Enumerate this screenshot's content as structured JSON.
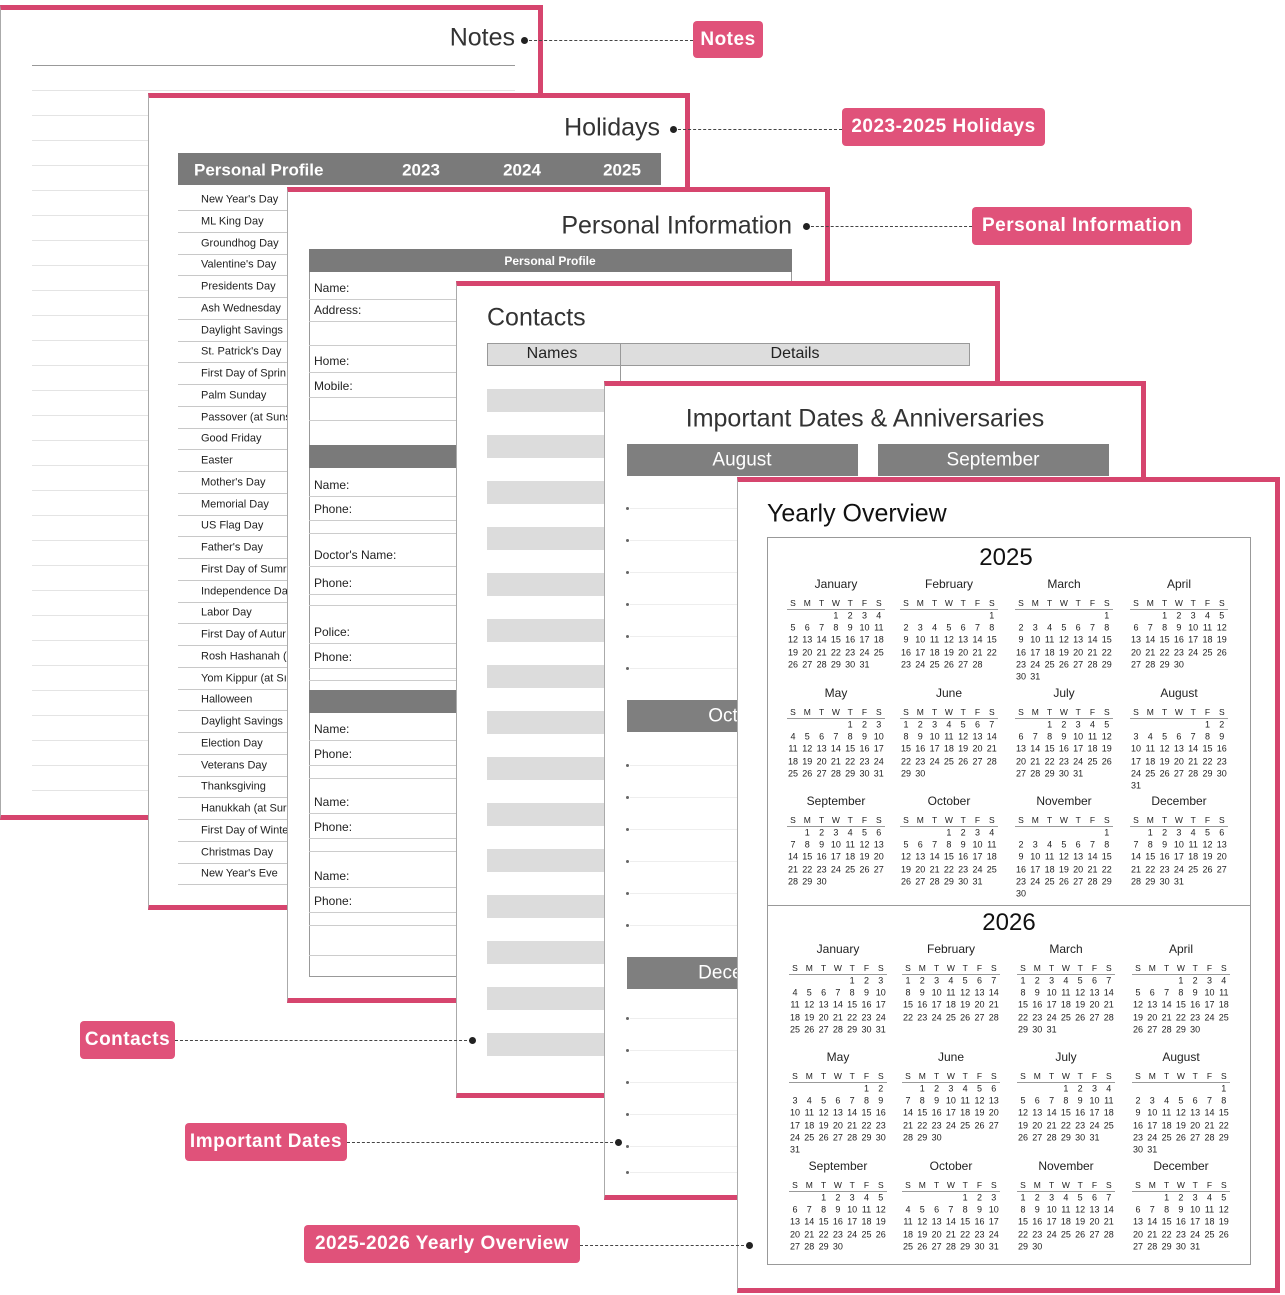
{
  "callouts": [
    "Notes",
    "2023-2025 Holidays",
    "Personal Information",
    "Contacts",
    "Important Dates",
    "2025-2026 Yearly Overview"
  ],
  "notes": {
    "title": "Notes"
  },
  "holidays": {
    "title": "Holidays",
    "header": [
      "Personal Profile",
      "2023",
      "2024",
      "2025"
    ],
    "items": [
      "New Year's Day",
      "ML King Day",
      "Groundhog Day",
      "Valentine's Day",
      "Presidents Day",
      "Ash Wednesday",
      "Daylight Savings",
      "St. Patrick's Day",
      "First Day of Sprin",
      "Palm Sunday",
      "Passover (at Suns",
      "Good Friday",
      "Easter",
      "Mother's Day",
      "Memorial Day",
      "US Flag Day",
      "Father's Day",
      "First Day of Sumr",
      "Independence Da",
      "Labor Day",
      "First Day of Autur",
      "Rosh Hashanah (",
      "Yom Kippur (at Sı",
      "Halloween",
      "Daylight Savings",
      "Election Day",
      "Veterans Day",
      "Thanksgiving",
      "Hanukkah (at Sur",
      "First Day of Winte",
      "Christmas Day",
      "New Year's Eve"
    ]
  },
  "personal_information": {
    "title": "Personal Information",
    "section_title": "Personal Profile",
    "fields": [
      "Name:",
      "Address:",
      "Home:",
      "Mobile:",
      "Name:",
      "Phone:",
      "Doctor's Name:",
      "Phone:",
      "Police:",
      "Phone:",
      "Name:",
      "Phone:",
      "Name:",
      "Phone:",
      "Name:",
      "Phone:"
    ]
  },
  "contacts": {
    "title": "Contacts",
    "columns": [
      "Names",
      "Details"
    ]
  },
  "important_dates": {
    "title": "Important Dates & Anniversaries",
    "months": [
      "August",
      "September",
      "October",
      "December"
    ]
  },
  "yearly_overview": {
    "title": "Yearly Overview",
    "weekdays": [
      "S",
      "M",
      "T",
      "W",
      "T",
      "F",
      "S"
    ],
    "years": [
      {
        "year": "2025",
        "months": [
          {
            "name": "January",
            "days": [
              null,
              null,
              null,
              1,
              2,
              3,
              4,
              5,
              6,
              7,
              8,
              9,
              10,
              11,
              12,
              13,
              14,
              15,
              16,
              17,
              18,
              19,
              20,
              21,
              22,
              23,
              24,
              25,
              26,
              27,
              28,
              29,
              30,
              31
            ]
          },
          {
            "name": "February",
            "days": [
              null,
              null,
              null,
              null,
              null,
              null,
              1,
              2,
              3,
              4,
              5,
              6,
              7,
              8,
              9,
              10,
              11,
              12,
              13,
              14,
              15,
              16,
              17,
              18,
              19,
              20,
              21,
              22,
              23,
              24,
              25,
              26,
              27,
              28
            ]
          },
          {
            "name": "March",
            "days": [
              null,
              null,
              null,
              null,
              null,
              null,
              1,
              2,
              3,
              4,
              5,
              6,
              7,
              8,
              9,
              10,
              11,
              12,
              13,
              14,
              15,
              16,
              17,
              18,
              19,
              20,
              21,
              22,
              23,
              24,
              25,
              26,
              27,
              28,
              29,
              30,
              31
            ]
          },
          {
            "name": "April",
            "days": [
              null,
              null,
              1,
              2,
              3,
              4,
              5,
              6,
              7,
              8,
              9,
              10,
              11,
              12,
              13,
              14,
              15,
              16,
              17,
              18,
              19,
              20,
              21,
              22,
              23,
              24,
              25,
              26,
              27,
              28,
              29,
              30
            ]
          },
          {
            "name": "May",
            "days": [
              null,
              null,
              null,
              null,
              1,
              2,
              3,
              4,
              5,
              6,
              7,
              8,
              9,
              10,
              11,
              12,
              13,
              14,
              15,
              16,
              17,
              18,
              19,
              20,
              21,
              22,
              23,
              24,
              25,
              26,
              27,
              28,
              29,
              30,
              31
            ]
          },
          {
            "name": "June",
            "days": [
              1,
              2,
              3,
              4,
              5,
              6,
              7,
              8,
              9,
              10,
              11,
              12,
              13,
              14,
              15,
              16,
              17,
              18,
              19,
              20,
              21,
              22,
              23,
              24,
              25,
              26,
              27,
              28,
              29,
              30
            ]
          },
          {
            "name": "July",
            "days": [
              null,
              null,
              1,
              2,
              3,
              4,
              5,
              6,
              7,
              8,
              9,
              10,
              11,
              12,
              13,
              14,
              15,
              16,
              17,
              18,
              19,
              20,
              21,
              22,
              23,
              24,
              25,
              26,
              27,
              28,
              29,
              30,
              31
            ]
          },
          {
            "name": "August",
            "days": [
              null,
              null,
              null,
              null,
              null,
              1,
              2,
              3,
              4,
              5,
              6,
              7,
              8,
              9,
              10,
              11,
              12,
              13,
              14,
              15,
              16,
              17,
              18,
              19,
              20,
              21,
              22,
              23,
              24,
              25,
              26,
              27,
              28,
              29,
              30,
              31
            ]
          },
          {
            "name": "September",
            "days": [
              null,
              1,
              2,
              3,
              4,
              5,
              6,
              7,
              8,
              9,
              10,
              11,
              12,
              13,
              14,
              15,
              16,
              17,
              18,
              19,
              20,
              21,
              22,
              23,
              24,
              25,
              26,
              27,
              28,
              29,
              30
            ]
          },
          {
            "name": "October",
            "days": [
              null,
              null,
              null,
              1,
              2,
              3,
              4,
              5,
              6,
              7,
              8,
              9,
              10,
              11,
              12,
              13,
              14,
              15,
              16,
              17,
              18,
              19,
              20,
              21,
              22,
              23,
              24,
              25,
              26,
              27,
              28,
              29,
              30,
              31
            ]
          },
          {
            "name": "November",
            "days": [
              null,
              null,
              null,
              null,
              null,
              null,
              1,
              2,
              3,
              4,
              5,
              6,
              7,
              8,
              9,
              10,
              11,
              12,
              13,
              14,
              15,
              16,
              17,
              18,
              19,
              20,
              21,
              22,
              23,
              24,
              25,
              26,
              27,
              28,
              29,
              30
            ]
          },
          {
            "name": "December",
            "days": [
              null,
              1,
              2,
              3,
              4,
              5,
              6,
              7,
              8,
              9,
              10,
              11,
              12,
              13,
              14,
              15,
              16,
              17,
              18,
              19,
              20,
              21,
              22,
              23,
              24,
              25,
              26,
              27,
              28,
              29,
              30,
              31
            ]
          }
        ]
      },
      {
        "year": "2026",
        "months": [
          {
            "name": "January",
            "days": [
              null,
              null,
              null,
              null,
              1,
              2,
              3,
              4,
              5,
              6,
              7,
              8,
              9,
              10,
              11,
              12,
              13,
              14,
              15,
              16,
              17,
              18,
              19,
              20,
              21,
              22,
              23,
              24,
              25,
              26,
              27,
              28,
              29,
              30,
              31
            ]
          },
          {
            "name": "February",
            "days": [
              1,
              2,
              3,
              4,
              5,
              6,
              7,
              8,
              9,
              10,
              11,
              12,
              13,
              14,
              15,
              16,
              17,
              18,
              19,
              20,
              21,
              22,
              23,
              24,
              25,
              26,
              27,
              28
            ]
          },
          {
            "name": "March",
            "days": [
              1,
              2,
              3,
              4,
              5,
              6,
              7,
              8,
              9,
              10,
              11,
              12,
              13,
              14,
              15,
              16,
              17,
              18,
              19,
              20,
              21,
              22,
              23,
              24,
              25,
              26,
              27,
              28,
              29,
              30,
              31
            ]
          },
          {
            "name": "April",
            "days": [
              null,
              null,
              null,
              1,
              2,
              3,
              4,
              5,
              6,
              7,
              8,
              9,
              10,
              11,
              12,
              13,
              14,
              15,
              16,
              17,
              18,
              19,
              20,
              21,
              22,
              23,
              24,
              25,
              26,
              27,
              28,
              29,
              30
            ]
          },
          {
            "name": "May",
            "days": [
              null,
              null,
              null,
              null,
              null,
              1,
              2,
              3,
              4,
              5,
              6,
              7,
              8,
              9,
              10,
              11,
              12,
              13,
              14,
              15,
              16,
              17,
              18,
              19,
              20,
              21,
              22,
              23,
              24,
              25,
              26,
              27,
              28,
              29,
              30,
              31
            ]
          },
          {
            "name": "June",
            "days": [
              null,
              1,
              2,
              3,
              4,
              5,
              6,
              7,
              8,
              9,
              10,
              11,
              12,
              13,
              14,
              15,
              16,
              17,
              18,
              19,
              20,
              21,
              22,
              23,
              24,
              25,
              26,
              27,
              28,
              29,
              30
            ]
          },
          {
            "name": "July",
            "days": [
              null,
              null,
              null,
              1,
              2,
              3,
              4,
              5,
              6,
              7,
              8,
              9,
              10,
              11,
              12,
              13,
              14,
              15,
              16,
              17,
              18,
              19,
              20,
              21,
              22,
              23,
              24,
              25,
              26,
              27,
              28,
              29,
              30,
              31
            ]
          },
          {
            "name": "August",
            "days": [
              null,
              null,
              null,
              null,
              null,
              null,
              1,
              2,
              3,
              4,
              5,
              6,
              7,
              8,
              9,
              10,
              11,
              12,
              13,
              14,
              15,
              16,
              17,
              18,
              19,
              20,
              21,
              22,
              23,
              24,
              25,
              26,
              27,
              28,
              29,
              30,
              31
            ]
          },
          {
            "name": "September",
            "days": [
              null,
              null,
              1,
              2,
              3,
              4,
              5,
              6,
              7,
              8,
              9,
              10,
              11,
              12,
              13,
              14,
              15,
              16,
              17,
              18,
              19,
              20,
              21,
              22,
              23,
              24,
              25,
              26,
              27,
              28,
              29,
              30
            ]
          },
          {
            "name": "October",
            "days": [
              null,
              null,
              null,
              null,
              1,
              2,
              3,
              4,
              5,
              6,
              7,
              8,
              9,
              10,
              11,
              12,
              13,
              14,
              15,
              16,
              17,
              18,
              19,
              20,
              21,
              22,
              23,
              24,
              25,
              26,
              27,
              28,
              29,
              30,
              31
            ]
          },
          {
            "name": "November",
            "days": [
              1,
              2,
              3,
              4,
              5,
              6,
              7,
              8,
              9,
              10,
              11,
              12,
              13,
              14,
              15,
              16,
              17,
              18,
              19,
              20,
              21,
              22,
              23,
              24,
              25,
              26,
              27,
              28,
              29,
              30
            ]
          },
          {
            "name": "December",
            "days": [
              null,
              null,
              1,
              2,
              3,
              4,
              5,
              6,
              7,
              8,
              9,
              10,
              11,
              12,
              13,
              14,
              15,
              16,
              17,
              18,
              19,
              20,
              21,
              22,
              23,
              24,
              25,
              26,
              27,
              28,
              29,
              30,
              31
            ]
          }
        ]
      }
    ]
  }
}
